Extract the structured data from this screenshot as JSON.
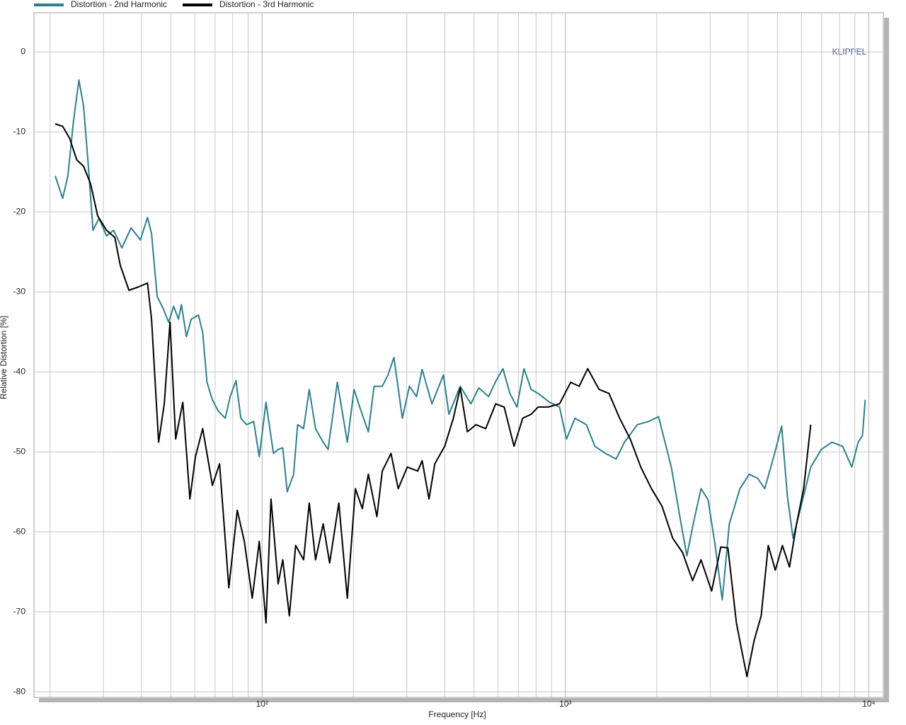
{
  "chart_data": {
    "type": "line",
    "xlabel": "Frequency  [Hz]",
    "ylabel": "Relative Distortion  [%]",
    "annotation": "KLIPPEL",
    "xscale": "log",
    "grid": true,
    "legend": "top-left",
    "xlim": [
      17.7,
      11170
    ],
    "ylim": [
      -80.7,
      4.9
    ],
    "xticks": [
      {
        "value": 100,
        "label": "10²"
      },
      {
        "value": 1000,
        "label": "10³"
      },
      {
        "value": 10000,
        "label": "10⁴"
      }
    ],
    "xminorticks": [
      20,
      30,
      40,
      50,
      60,
      70,
      80,
      90,
      200,
      300,
      400,
      500,
      600,
      700,
      800,
      900,
      2000,
      3000,
      4000,
      5000,
      6000,
      7000,
      8000,
      9000
    ],
    "yticks": [
      0,
      -10,
      -20,
      -30,
      -40,
      -50,
      -60,
      -70,
      -80
    ],
    "series": [
      {
        "name": "Distortion - 2nd Harmonic",
        "color": "#2f7f8c",
        "x": [
          20.8,
          22.0,
          22.9,
          23.9,
          24.9,
          25.8,
          26.7,
          27.7,
          29.0,
          30.7,
          32.4,
          34.5,
          37.0,
          39.7,
          41.9,
          43.2,
          45.1,
          47.1,
          49.2,
          51.1,
          53.0,
          54.2,
          56.3,
          58.4,
          61.7,
          63.7,
          65.8,
          68.6,
          71.7,
          75.6,
          78.5,
          82.0,
          85.1,
          88.9,
          93.8,
          97.9,
          103,
          109,
          113,
          117,
          121,
          127,
          131,
          137,
          143,
          150,
          159,
          165,
          177,
          191,
          201,
          212,
          224,
          234,
          249,
          260,
          272,
          290,
          306,
          323,
          337,
          363,
          396,
          413,
          450,
          488,
          518,
          558,
          589,
          622,
          656,
          692,
          730,
          771,
          813,
          886,
          956,
          1008,
          1075,
          1172,
          1250,
          1355,
          1469,
          1566,
          1726,
          1880,
          2027,
          2233,
          2407,
          2513,
          2652,
          2799,
          2953,
          3116,
          3288,
          3469,
          3761,
          4033,
          4301,
          4540,
          4894,
          5162,
          5390,
          5628,
          6099,
          6436,
          6976,
          7560,
          8196,
          8790,
          9226,
          9528,
          9734
        ],
        "values": [
          -15.5,
          -18.3,
          -15.5,
          -8.6,
          -3.5,
          -6.8,
          -13.9,
          -22.3,
          -20.8,
          -23.0,
          -22.3,
          -24.5,
          -22.0,
          -23.5,
          -20.7,
          -22.7,
          -30.6,
          -32.0,
          -33.8,
          -31.8,
          -33.4,
          -31.6,
          -35.6,
          -33.4,
          -32.9,
          -35.1,
          -41.3,
          -43.5,
          -44.9,
          -45.8,
          -43.1,
          -41.1,
          -45.8,
          -46.6,
          -46.2,
          -50.6,
          -43.8,
          -50.2,
          -49.7,
          -49.5,
          -55.0,
          -52.8,
          -46.6,
          -47.1,
          -42.2,
          -47.1,
          -48.8,
          -49.7,
          -41.3,
          -48.8,
          -42.2,
          -44.9,
          -47.5,
          -41.8,
          -41.8,
          -40.4,
          -38.2,
          -45.8,
          -41.8,
          -43.1,
          -39.7,
          -44.0,
          -40.4,
          -45.3,
          -41.8,
          -44.0,
          -42.0,
          -43.1,
          -41.2,
          -39.6,
          -42.7,
          -44.4,
          -39.6,
          -42.2,
          -42.7,
          -43.8,
          -44.4,
          -48.4,
          -45.8,
          -46.6,
          -49.3,
          -50.2,
          -50.9,
          -48.8,
          -46.6,
          -46.2,
          -45.6,
          -51.9,
          -59.0,
          -63.0,
          -58.6,
          -54.6,
          -56.0,
          -61.7,
          -68.5,
          -59.0,
          -54.6,
          -52.8,
          -53.3,
          -54.6,
          -50.2,
          -46.8,
          -55.5,
          -60.8,
          -55.5,
          -51.9,
          -49.7,
          -48.8,
          -49.3,
          -51.9,
          -48.8,
          -48.0,
          -43.5
        ]
      },
      {
        "name": "Distortion - 3rd Harmonic",
        "color": "#000000",
        "x": [
          20.8,
          22.0,
          23.2,
          24.5,
          25.8,
          27.2,
          28.7,
          30.7,
          32.7,
          34.1,
          36.4,
          39.0,
          41.9,
          43.2,
          45.6,
          47.6,
          49.7,
          51.9,
          54.8,
          57.8,
          60.3,
          63.7,
          68.6,
          72.4,
          77.7,
          82.8,
          87.4,
          92.8,
          97.9,
          103,
          107,
          113,
          117,
          123,
          129,
          137,
          143,
          150,
          159,
          167,
          179,
          191,
          203,
          214,
          224,
          239,
          249,
          266,
          281,
          301,
          326,
          337,
          355,
          371,
          400,
          427,
          450,
          475,
          507,
          546,
          589,
          628,
          677,
          723,
          771,
          813,
          877,
          956,
          1041,
          1110,
          1184,
          1291,
          1392,
          1509,
          1635,
          1772,
          1921,
          2082,
          2257,
          2434,
          2624,
          2799,
          3034,
          3252,
          3432,
          3661,
          3821,
          3967,
          4188,
          4419,
          4664,
          4921,
          5192,
          5479,
          5781,
          6099,
          6436
        ],
        "values": [
          -9.0,
          -9.3,
          -10.8,
          -13.5,
          -14.3,
          -16.5,
          -20.5,
          -22.3,
          -23.2,
          -26.7,
          -29.8,
          -29.4,
          -28.9,
          -33.4,
          -48.8,
          -44.0,
          -33.8,
          -48.4,
          -43.8,
          -55.9,
          -50.6,
          -47.1,
          -54.2,
          -51.5,
          -67.0,
          -57.3,
          -61.2,
          -68.3,
          -61.2,
          -71.4,
          -55.9,
          -66.5,
          -63.5,
          -70.5,
          -61.7,
          -63.5,
          -56.4,
          -63.5,
          -59.0,
          -63.9,
          -56.4,
          -68.3,
          -54.6,
          -57.1,
          -52.8,
          -58.1,
          -52.4,
          -50.2,
          -54.6,
          -51.9,
          -52.4,
          -51.1,
          -55.9,
          -51.5,
          -49.3,
          -45.8,
          -42.0,
          -47.5,
          -46.6,
          -47.1,
          -44.0,
          -44.4,
          -49.3,
          -45.8,
          -45.3,
          -44.4,
          -44.4,
          -44.0,
          -41.3,
          -41.8,
          -39.6,
          -42.2,
          -42.7,
          -45.8,
          -48.4,
          -51.9,
          -54.6,
          -56.8,
          -60.8,
          -62.6,
          -66.1,
          -63.5,
          -67.4,
          -61.9,
          -62.0,
          -71.4,
          -75.0,
          -78.1,
          -73.6,
          -70.5,
          -61.7,
          -64.8,
          -61.7,
          -64.4,
          -59.0,
          -54.6,
          -46.6
        ]
      }
    ]
  }
}
